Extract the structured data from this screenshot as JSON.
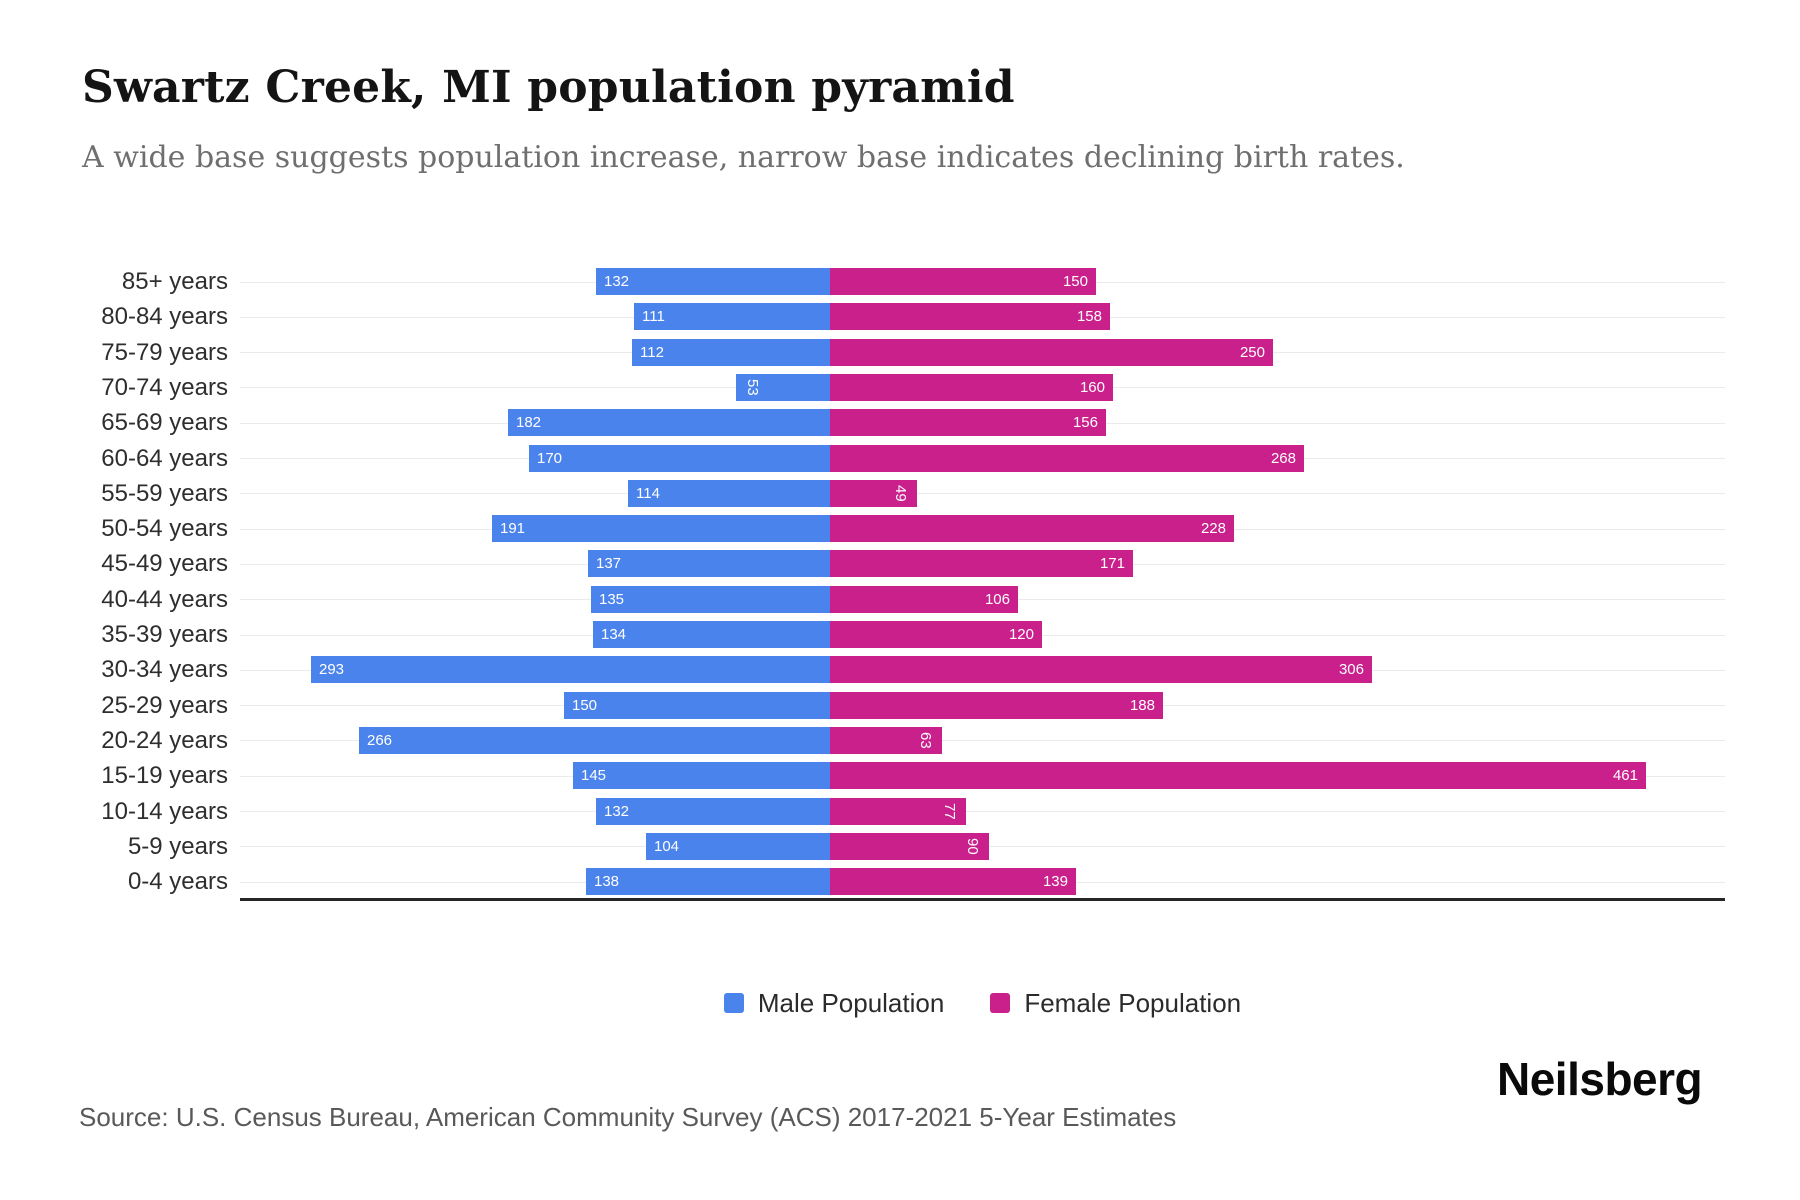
{
  "header": {
    "title": "Swartz Creek, MI population pyramid",
    "subtitle": "A wide base suggests population increase, narrow base indicates declining birth rates."
  },
  "chart_data": {
    "type": "bar",
    "variant": "population-pyramid",
    "title": "Swartz Creek, MI population pyramid",
    "categories": [
      "85+ years",
      "80-84 years",
      "75-79 years",
      "70-74 years",
      "65-69 years",
      "60-64 years",
      "55-59 years",
      "50-54 years",
      "45-49 years",
      "40-44 years",
      "35-39 years",
      "30-34 years",
      "25-29 years",
      "20-24 years",
      "15-19 years",
      "10-14 years",
      "5-9 years",
      "0-4 years"
    ],
    "series": [
      {
        "name": "Male Population",
        "color": "#4B83EC",
        "side": "left",
        "values": [
          132,
          111,
          112,
          53,
          182,
          170,
          114,
          191,
          137,
          135,
          134,
          293,
          150,
          266,
          145,
          132,
          104,
          138
        ]
      },
      {
        "name": "Female Population",
        "color": "#C9208C",
        "side": "right",
        "values": [
          150,
          158,
          250,
          160,
          156,
          268,
          49,
          228,
          171,
          106,
          120,
          306,
          188,
          63,
          461,
          77,
          90,
          139
        ]
      }
    ],
    "value_labels": "inside-end, white, rotated vertically when value < 100",
    "legend_position": "bottom",
    "grid": "horizontal light lines per category",
    "axis_baseline": "dark line under last category"
  },
  "footer": {
    "source": "Source: U.S. Census Bureau, American Community Survey (ACS) 2017-2021 5-Year Estimates",
    "brand": "Neilsberg"
  }
}
